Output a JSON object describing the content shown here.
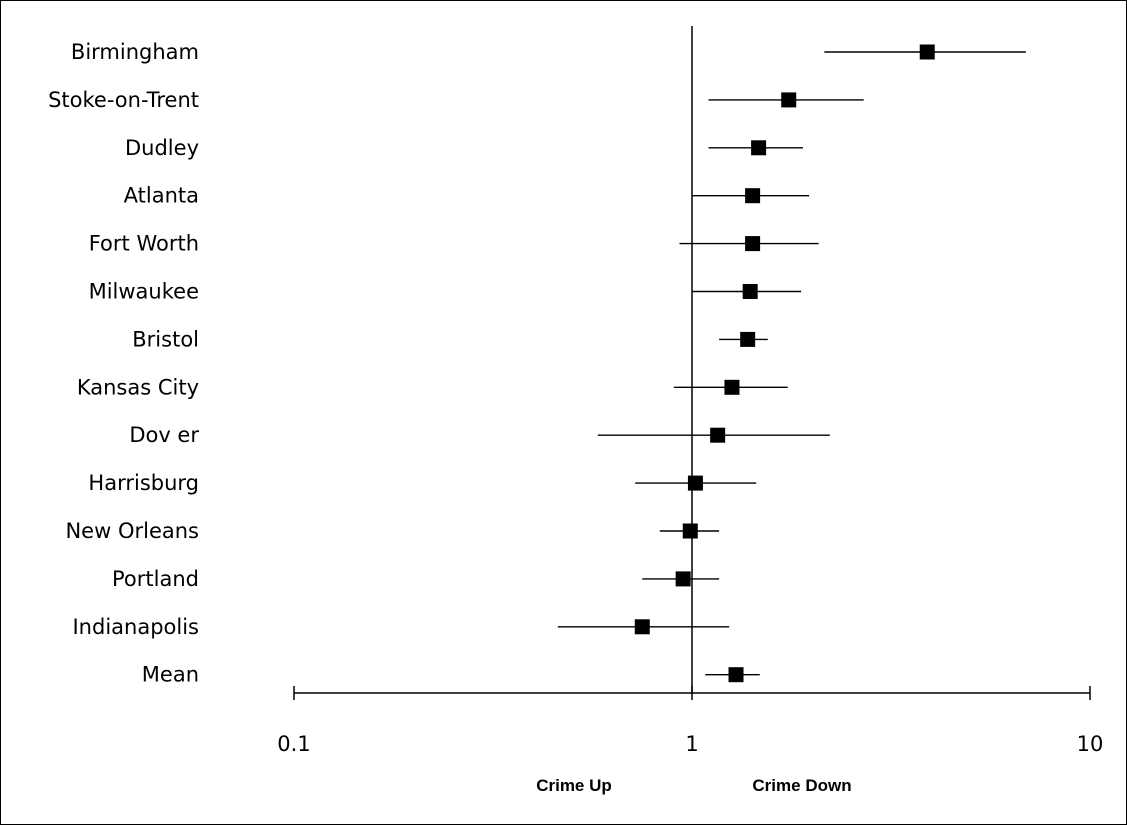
{
  "chart_data": {
    "type": "forest",
    "x_scale": "log",
    "xlim": [
      0.1,
      10
    ],
    "x_ticks": [
      "0.1",
      "1",
      "10"
    ],
    "reference_line_x": 1,
    "direction_labels": {
      "left": "Crime Up",
      "right": "Crime Down"
    },
    "grid": false,
    "marker": "square",
    "colors": {
      "marker": "#000000",
      "line": "#000000"
    },
    "rows": [
      {
        "label": "Birmingham",
        "estimate": 3.9,
        "lower": 2.15,
        "upper": 6.9
      },
      {
        "label": "Stoke-on-Trent",
        "estimate": 1.75,
        "lower": 1.1,
        "upper": 2.7
      },
      {
        "label": "Dudley",
        "estimate": 1.47,
        "lower": 1.1,
        "upper": 1.9
      },
      {
        "label": "Atlanta",
        "estimate": 1.42,
        "lower": 1.0,
        "upper": 1.97
      },
      {
        "label": "Fort Worth",
        "estimate": 1.42,
        "lower": 0.93,
        "upper": 2.08
      },
      {
        "label": "Milwaukee",
        "estimate": 1.4,
        "lower": 1.0,
        "upper": 1.88
      },
      {
        "label": "Bristol",
        "estimate": 1.38,
        "lower": 1.17,
        "upper": 1.55
      },
      {
        "label": "Kansas City",
        "estimate": 1.26,
        "lower": 0.9,
        "upper": 1.74
      },
      {
        "label": "Dov er",
        "estimate": 1.16,
        "lower": 0.58,
        "upper": 2.22
      },
      {
        "label": "Harrisburg",
        "estimate": 1.02,
        "lower": 0.72,
        "upper": 1.45
      },
      {
        "label": "New Orleans",
        "estimate": 0.99,
        "lower": 0.83,
        "upper": 1.17
      },
      {
        "label": "Portland",
        "estimate": 0.95,
        "lower": 0.75,
        "upper": 1.17
      },
      {
        "label": "Indianapolis",
        "estimate": 0.75,
        "lower": 0.46,
        "upper": 1.24
      },
      {
        "label": "Mean",
        "estimate": 1.29,
        "lower": 1.08,
        "upper": 1.48
      }
    ]
  }
}
